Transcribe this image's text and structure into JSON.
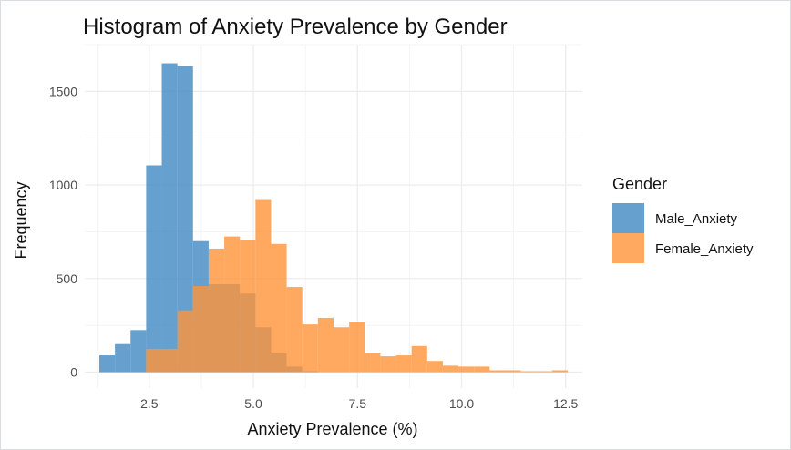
{
  "chart_data": {
    "type": "histogram",
    "title": "Histogram of Anxiety Prevalence by Gender",
    "xlabel": "Anxiety Prevalence (%)",
    "ylabel": "Frequency",
    "xlim": [
      0.95,
      12.9
    ],
    "ylim": [
      -85,
      1750
    ],
    "xticks": [
      2.5,
      5.0,
      7.5,
      10.0,
      12.5
    ],
    "xtick_labels": [
      "2.5",
      "5.0",
      "7.5",
      "10.0",
      "12.5"
    ],
    "yticks": [
      0,
      500,
      1000,
      1500
    ],
    "ytick_labels": [
      "0",
      "500",
      "1000",
      "1500"
    ],
    "grid": true,
    "bin_width": 0.375,
    "legend": {
      "title": "Gender",
      "position": "right",
      "entries": [
        "Male_Anxiety",
        "Female_Anxiety"
      ]
    },
    "series": [
      {
        "name": "Male_Anxiety",
        "color": "#4a8fc5",
        "opacity": 0.85,
        "bin_starts": [
          1.3,
          1.675,
          2.05,
          2.425,
          2.8,
          3.175,
          3.55,
          3.925,
          4.3,
          4.675,
          5.05,
          5.425,
          5.8,
          6.175
        ],
        "values": [
          90,
          150,
          225,
          1105,
          1650,
          1635,
          700,
          470,
          470,
          420,
          240,
          100,
          30,
          5
        ]
      },
      {
        "name": "Female_Anxiety",
        "color": "#ff9438",
        "opacity": 0.8,
        "bin_starts": [
          2.425,
          2.8,
          3.175,
          3.55,
          3.925,
          4.3,
          4.675,
          5.05,
          5.425,
          5.8,
          6.175,
          6.55,
          6.925,
          7.3,
          7.675,
          8.05,
          8.425,
          8.8,
          9.175,
          9.55,
          9.925,
          10.3,
          10.675,
          11.05,
          11.425,
          11.8,
          12.175
        ],
        "values": [
          125,
          125,
          330,
          460,
          660,
          725,
          705,
          920,
          685,
          455,
          255,
          290,
          240,
          270,
          100,
          85,
          90,
          140,
          60,
          35,
          30,
          30,
          10,
          10,
          5,
          5,
          10
        ]
      }
    ]
  }
}
